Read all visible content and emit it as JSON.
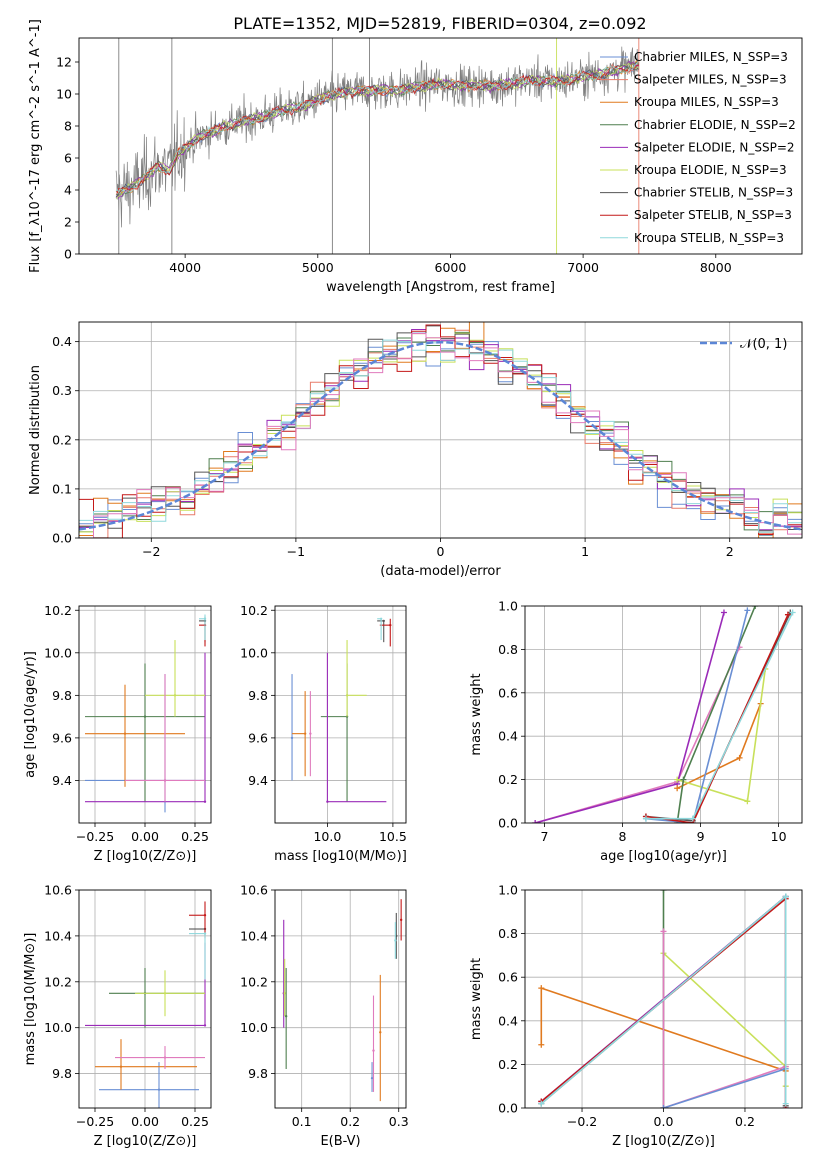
{
  "figure": {
    "title": "PLATE=1352, MJD=52819, FIBERID=0304, z=0.092"
  },
  "colors": {
    "chabrier_miles": "#6a8fd4",
    "salpeter_miles": "#e87c6a",
    "kroupa_miles": "#e07a1f",
    "chabrier_elodie": "#4f7f4f",
    "salpeter_elodie": "#9a2bb8",
    "kroupa_elodie": "#c8e05a",
    "chabrier_stelib": "#555555",
    "salpeter_stelib": "#c41818",
    "kroupa_stelib": "#8fd8dc",
    "pink": "#e07bbd",
    "normal_curve": "#5b86d6",
    "spectrum": "#7f7f7f"
  },
  "chart_data": [
    {
      "type": "line",
      "id": "spectrum",
      "xlabel": "wavelength [Angstrom, rest frame]",
      "ylabel": "Flux [f_λ10^-17 erg cm^-2 s^-1 A^-1]",
      "xlim": [
        3200,
        8650
      ],
      "ylim": [
        0,
        13.5
      ],
      "xticks": [
        4000,
        5000,
        6000,
        7000,
        8000
      ],
      "yticks": [
        0,
        2,
        4,
        6,
        8,
        10,
        12
      ],
      "grid": false,
      "legend_position": "upper-right",
      "data_start": 3480,
      "data_end": 7420,
      "series": [
        {
          "name": "Chabrier MILES, N_SSP=3",
          "color_key": "chabrier_miles"
        },
        {
          "name": "Salpeter MILES, N_SSP=3",
          "color_key": "salpeter_miles"
        },
        {
          "name": "Kroupa MILES, N_SSP=3",
          "color_key": "kroupa_miles"
        },
        {
          "name": "Chabrier ELODIE, N_SSP=2",
          "color_key": "chabrier_elodie"
        },
        {
          "name": "Salpeter ELODIE, N_SSP=2",
          "color_key": "salpeter_elodie"
        },
        {
          "name": "Kroupa ELODIE, N_SSP=3",
          "color_key": "kroupa_elodie"
        },
        {
          "name": "Chabrier STELIB, N_SSP=3",
          "color_key": "chabrier_stelib"
        },
        {
          "name": "Salpeter STELIB, N_SSP=3",
          "color_key": "salpeter_stelib"
        },
        {
          "name": "Kroupa STELIB, N_SSP=3",
          "color_key": "kroupa_stelib"
        }
      ],
      "model_continuum": {
        "x": [
          3480,
          3600,
          3700,
          3800,
          3880,
          3950,
          4000,
          4100,
          4200,
          4300,
          4400,
          4500,
          4600,
          4700,
          4800,
          4900,
          5000,
          5100,
          5200,
          5300,
          5400,
          5500,
          5600,
          5700,
          5800,
          5900,
          6000,
          6100,
          6200,
          6300,
          6400,
          6500,
          6600,
          6700,
          6800,
          6900,
          7000,
          7100,
          7200,
          7300,
          7420
        ],
        "y": [
          3.7,
          4.2,
          4.8,
          5.5,
          5.2,
          6.3,
          6.6,
          7.3,
          7.6,
          8.0,
          8.2,
          8.4,
          8.6,
          8.9,
          9.1,
          9.2,
          9.7,
          9.9,
          10.1,
          10.2,
          10.2,
          10.3,
          10.2,
          10.4,
          10.5,
          10.6,
          10.6,
          10.5,
          10.6,
          10.5,
          10.6,
          10.7,
          10.9,
          10.8,
          10.8,
          10.9,
          11.1,
          11.2,
          11.4,
          11.6,
          11.8
        ]
      }
    },
    {
      "type": "bar",
      "id": "residual-histogram",
      "xlabel": "(data-model)/error",
      "ylabel": "Normed distribution",
      "xlim": [
        -2.5,
        2.5
      ],
      "ylim": [
        0,
        0.44
      ],
      "xticks": [
        -2,
        -1,
        0,
        1,
        2
      ],
      "yticks": [
        0.0,
        0.1,
        0.2,
        0.3,
        0.4
      ],
      "grid": true,
      "legend_position": "upper-right",
      "reference_curve": {
        "name": "𝒩(0, 1)",
        "mean": 0,
        "sigma": 1
      },
      "bin_width": 0.1
    },
    {
      "type": "scatter",
      "id": "age-vs-Z",
      "xlabel": "Z [log10(Z/Z⊙)]",
      "ylabel": "age  [log10(age/yr)]",
      "xlim": [
        -0.33,
        0.33
      ],
      "ylim": [
        9.2,
        10.22
      ],
      "xticks": [
        -0.25,
        0.0,
        0.25
      ],
      "yticks": [
        9.4,
        9.6,
        9.8,
        10.0,
        10.2
      ],
      "grid": true,
      "points": [
        {
          "c": "chabrier_miles",
          "x": 0.1,
          "y": 9.4,
          "xerr": [
            0.4,
            0.2
          ],
          "yerr": [
            0.15,
            0.5
          ]
        },
        {
          "c": "kroupa_miles",
          "x": -0.1,
          "y": 9.62,
          "xerr": [
            0.2,
            0.3
          ],
          "yerr": [
            0.25,
            0.23
          ]
        },
        {
          "c": "chabrier_elodie",
          "x": 0.0,
          "y": 9.7,
          "xerr": [
            0.3,
            0.3
          ],
          "yerr": [
            0.4,
            0.25
          ]
        },
        {
          "c": "salpeter_elodie",
          "x": 0.3,
          "y": 9.3,
          "xerr": [
            0.6,
            0.0
          ],
          "yerr": [
            0.0,
            0.7
          ]
        },
        {
          "c": "kroupa_elodie",
          "x": 0.15,
          "y": 9.8,
          "xerr": [
            0.15,
            0.15
          ],
          "yerr": [
            0.1,
            0.26
          ]
        },
        {
          "c": "pink",
          "x": 0.1,
          "y": 9.4,
          "xerr": [
            0.2,
            0.2
          ],
          "yerr": [
            0.1,
            0.5
          ]
        },
        {
          "c": "chabrier_stelib",
          "x": 0.3,
          "y": 10.15,
          "xerr": [
            0.03,
            0.0
          ],
          "yerr": [
            0.1,
            0.02
          ]
        },
        {
          "c": "salpeter_stelib",
          "x": 0.3,
          "y": 10.13,
          "xerr": [
            0.03,
            0.0
          ],
          "yerr": [
            0.1,
            0.02
          ]
        },
        {
          "c": "kroupa_stelib",
          "x": 0.3,
          "y": 10.16,
          "xerr": [
            0.03,
            0.0
          ],
          "yerr": [
            0.1,
            0.02
          ]
        }
      ]
    },
    {
      "type": "scatter",
      "id": "age-vs-mass",
      "xlabel": "mass [log10(M/M⊙)]",
      "ylabel": "",
      "xlim": [
        9.6,
        10.6
      ],
      "ylim": [
        9.2,
        10.22
      ],
      "xticks": [
        10.0,
        10.5
      ],
      "yticks": [
        9.4,
        9.6,
        9.8,
        10.0,
        10.2
      ],
      "grid": true,
      "points": [
        {
          "c": "chabrier_miles",
          "x": 9.73,
          "y": 9.6,
          "xerr": [
            0.0,
            0.0
          ],
          "yerr": [
            0.2,
            0.3
          ]
        },
        {
          "c": "kroupa_miles",
          "x": 9.83,
          "y": 9.62,
          "xerr": [
            0.1,
            0.0
          ],
          "yerr": [
            0.2,
            0.2
          ]
        },
        {
          "c": "pink",
          "x": 9.87,
          "y": 9.62,
          "xerr": [
            0.0,
            0.0
          ],
          "yerr": [
            0.2,
            0.2
          ]
        },
        {
          "c": "chabrier_elodie",
          "x": 10.15,
          "y": 9.7,
          "xerr": [
            0.2,
            0.0
          ],
          "yerr": [
            0.4,
            0.25
          ]
        },
        {
          "c": "salpeter_elodie",
          "x": 10.0,
          "y": 9.3,
          "xerr": [
            0.0,
            0.45
          ],
          "yerr": [
            0.0,
            0.7
          ]
        },
        {
          "c": "kroupa_elodie",
          "x": 10.15,
          "y": 9.8,
          "xerr": [
            0.0,
            0.15
          ],
          "yerr": [
            0.1,
            0.26
          ]
        },
        {
          "c": "chabrier_stelib",
          "x": 10.43,
          "y": 10.15,
          "xerr": [
            0.05,
            0.0
          ],
          "yerr": [
            0.1,
            0.0
          ]
        },
        {
          "c": "salpeter_stelib",
          "x": 10.48,
          "y": 10.13,
          "xerr": [
            0.08,
            0.0
          ],
          "yerr": [
            0.1,
            0.03
          ]
        },
        {
          "c": "kroupa_stelib",
          "x": 10.41,
          "y": 10.16,
          "xerr": [
            0.03,
            0.0
          ],
          "yerr": [
            0.1,
            0.0
          ]
        }
      ]
    },
    {
      "type": "line",
      "id": "mass-weight-vs-age",
      "xlabel": "age  [log10(age/yr)]",
      "ylabel": "mass weight",
      "xlim": [
        6.75,
        10.3
      ],
      "ylim": [
        0,
        1
      ],
      "xticks": [
        7,
        8,
        9,
        10
      ],
      "yticks": [
        0.0,
        0.2,
        0.4,
        0.6,
        0.8,
        1.0
      ],
      "grid": true,
      "series": [
        {
          "c": "pink",
          "x": [
            6.88,
            8.7,
            9.5
          ],
          "y": [
            0.0,
            0.19,
            0.81
          ]
        },
        {
          "c": "salpeter_elodie",
          "x": [
            6.88,
            8.7,
            9.3
          ],
          "y": [
            0.0,
            0.18,
            0.97
          ]
        },
        {
          "c": "kroupa_miles",
          "x": [
            8.7,
            9.5,
            9.77
          ],
          "y": [
            0.16,
            0.3,
            0.55
          ]
        },
        {
          "c": "kroupa_elodie",
          "x": [
            8.7,
            9.6,
            9.83
          ],
          "y": [
            0.2,
            0.1,
            0.71
          ]
        },
        {
          "c": "chabrier_elodie",
          "x": [
            8.7,
            8.78,
            9.7
          ],
          "y": [
            0.0,
            0.2,
            1.0
          ]
        },
        {
          "c": "chabrier_miles",
          "x": [
            8.3,
            8.9,
            9.6
          ],
          "y": [
            0.02,
            0.0,
            0.98
          ]
        },
        {
          "c": "chabrier_stelib",
          "x": [
            8.3,
            8.9,
            10.15
          ],
          "y": [
            0.03,
            0.01,
            0.97
          ]
        },
        {
          "c": "salpeter_stelib",
          "x": [
            8.3,
            8.9,
            10.12
          ],
          "y": [
            0.03,
            0.0,
            0.96
          ]
        },
        {
          "c": "kroupa_stelib",
          "x": [
            8.3,
            8.9,
            10.18
          ],
          "y": [
            0.02,
            0.02,
            0.97
          ]
        }
      ]
    },
    {
      "type": "scatter",
      "id": "mass-vs-Z",
      "xlabel": "Z [log10(Z/Z⊙)]",
      "ylabel": "mass [log10(M/M⊙)]",
      "xlim": [
        -0.33,
        0.33
      ],
      "ylim": [
        9.65,
        10.6
      ],
      "xticks": [
        -0.25,
        0.0,
        0.25
      ],
      "yticks": [
        9.8,
        10.0,
        10.2,
        10.4,
        10.6
      ],
      "grid": true,
      "points": [
        {
          "c": "chabrier_miles",
          "x": 0.07,
          "y": 9.73,
          "xerr": [
            0.3,
            0.2
          ],
          "yerr": [
            0.1,
            0.12
          ]
        },
        {
          "c": "kroupa_miles",
          "x": -0.12,
          "y": 9.83,
          "xerr": [
            0.13,
            0.38
          ],
          "yerr": [
            0.1,
            0.12
          ]
        },
        {
          "c": "pink",
          "x": 0.1,
          "y": 9.87,
          "xerr": [
            0.25,
            0.2
          ],
          "yerr": [
            0.05,
            0.05
          ]
        },
        {
          "c": "chabrier_elodie",
          "x": 0.0,
          "y": 10.15,
          "xerr": [
            0.18,
            0.3
          ],
          "yerr": [
            0.15,
            0.11
          ]
        },
        {
          "c": "salpeter_elodie",
          "x": 0.3,
          "y": 10.01,
          "xerr": [
            0.6,
            0.0
          ],
          "yerr": [
            0.0,
            0.36
          ]
        },
        {
          "c": "kroupa_elodie",
          "x": 0.1,
          "y": 10.15,
          "xerr": [
            0.15,
            0.2
          ],
          "yerr": [
            0.1,
            0.1
          ]
        },
        {
          "c": "chabrier_stelib",
          "x": 0.3,
          "y": 10.43,
          "xerr": [
            0.08,
            0.0
          ],
          "yerr": [
            0.0,
            0.0
          ]
        },
        {
          "c": "salpeter_stelib",
          "x": 0.3,
          "y": 10.49,
          "xerr": [
            0.08,
            0.0
          ],
          "yerr": [
            0.1,
            0.06
          ]
        },
        {
          "c": "kroupa_stelib",
          "x": 0.3,
          "y": 10.41,
          "xerr": [
            0.08,
            0.0
          ],
          "yerr": [
            0.2,
            0.0
          ]
        }
      ]
    },
    {
      "type": "scatter",
      "id": "mass-vs-ebv",
      "xlabel": "E(B-V)",
      "ylabel": "",
      "xlim": [
        0.045,
        0.315
      ],
      "ylim": [
        9.65,
        10.6
      ],
      "xticks": [
        0.1,
        0.2,
        0.3
      ],
      "yticks": [
        9.8,
        10.0,
        10.2,
        10.4,
        10.6
      ],
      "grid": true,
      "points": [
        {
          "c": "salpeter_elodie",
          "x": 0.063,
          "y": 10.15,
          "yerr": [
            0.15,
            0.32
          ]
        },
        {
          "c": "kroupa_elodie",
          "x": 0.065,
          "y": 10.15,
          "yerr": [
            0.1,
            0.15
          ]
        },
        {
          "c": "chabrier_elodie",
          "x": 0.068,
          "y": 10.05,
          "yerr": [
            0.23,
            0.21
          ]
        },
        {
          "c": "chabrier_miles",
          "x": 0.245,
          "y": 9.78,
          "yerr": [
            0.06,
            0.07
          ]
        },
        {
          "c": "pink",
          "x": 0.248,
          "y": 9.9,
          "yerr": [
            0.18,
            0.24
          ]
        },
        {
          "c": "kroupa_miles",
          "x": 0.262,
          "y": 9.98,
          "yerr": [
            0.3,
            0.25
          ]
        },
        {
          "c": "chabrier_stelib",
          "x": 0.295,
          "y": 10.4,
          "yerr": [
            0.1,
            0.1
          ]
        },
        {
          "c": "kroupa_stelib",
          "x": 0.293,
          "y": 10.38,
          "yerr": [
            0.08,
            0.08
          ]
        },
        {
          "c": "salpeter_stelib",
          "x": 0.305,
          "y": 10.47,
          "yerr": [
            0.09,
            0.09
          ]
        }
      ]
    },
    {
      "type": "line",
      "id": "mass-weight-vs-Z",
      "xlabel": "Z [log10(Z/Z⊙)]",
      "ylabel": "mass weight",
      "xlim": [
        -0.34,
        0.34
      ],
      "ylim": [
        0,
        1
      ],
      "xticks": [
        -0.2,
        0.0,
        0.2
      ],
      "yticks": [
        0.0,
        0.2,
        0.4,
        0.6,
        0.8,
        1.0
      ],
      "grid": true,
      "series": [
        {
          "c": "kroupa_miles",
          "x": [
            -0.3,
            -0.3,
            0.3
          ],
          "y": [
            0.29,
            0.55,
            0.17
          ]
        },
        {
          "c": "kroupa_elodie",
          "x": [
            0.0,
            0.3,
            0.3
          ],
          "y": [
            0.71,
            0.19,
            0.1
          ]
        },
        {
          "c": "chabrier_elodie",
          "x": [
            0.0,
            0.0
          ],
          "y": [
            0.0,
            1.0
          ]
        },
        {
          "c": "salpeter_elodie",
          "x": [
            -0.3,
            0.3,
            0.3
          ],
          "y": [
            0.03,
            0.97,
            0.0
          ]
        },
        {
          "c": "pink",
          "x": [
            0.0,
            0.0,
            0.3
          ],
          "y": [
            0.81,
            0.0,
            0.19
          ]
        },
        {
          "c": "chabrier_miles",
          "x": [
            0.0,
            0.3
          ],
          "y": [
            0.0,
            0.18
          ]
        },
        {
          "c": "chabrier_stelib",
          "x": [
            -0.3,
            0.3,
            0.3
          ],
          "y": [
            0.02,
            0.97,
            0.01
          ]
        },
        {
          "c": "salpeter_stelib",
          "x": [
            -0.3,
            0.3,
            0.3
          ],
          "y": [
            0.03,
            0.96,
            0.0
          ]
        },
        {
          "c": "kroupa_stelib",
          "x": [
            -0.3,
            0.3,
            0.3
          ],
          "y": [
            0.02,
            0.97,
            0.02
          ]
        }
      ]
    }
  ]
}
